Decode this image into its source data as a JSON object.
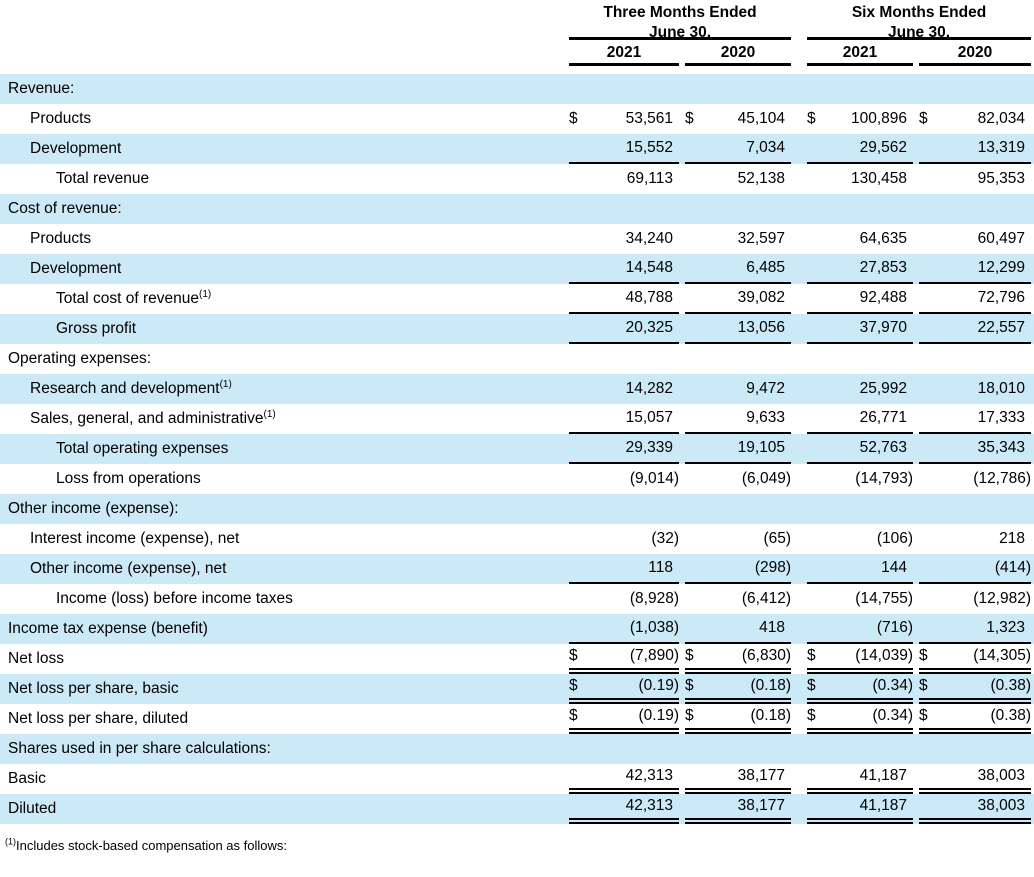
{
  "header": {
    "groups": [
      {
        "line1": "Three Months Ended",
        "line2": "June 30,"
      },
      {
        "line1": "Six Months Ended",
        "line2": "June 30,"
      }
    ],
    "years": [
      "2021",
      "2020",
      "2021",
      "2020"
    ]
  },
  "rows": [
    {
      "label": "Revenue:",
      "indent": 0,
      "values": null,
      "dollar": false,
      "underline": "none"
    },
    {
      "label": "Products",
      "indent": 1,
      "values": [
        "53,561",
        "45,104",
        "100,896",
        "82,034"
      ],
      "dollar": true,
      "underline": "none"
    },
    {
      "label": "Development",
      "indent": 1,
      "values": [
        "15,552",
        "7,034",
        "29,562",
        "13,319"
      ],
      "dollar": false,
      "underline": "single"
    },
    {
      "label": "Total revenue",
      "indent": 2,
      "values": [
        "69,113",
        "52,138",
        "130,458",
        "95,353"
      ],
      "dollar": false,
      "underline": "none"
    },
    {
      "label": "Cost of revenue:",
      "indent": 0,
      "values": null,
      "dollar": false,
      "underline": "none"
    },
    {
      "label": "Products",
      "indent": 1,
      "values": [
        "34,240",
        "32,597",
        "64,635",
        "60,497"
      ],
      "dollar": false,
      "underline": "none"
    },
    {
      "label": "Development",
      "indent": 1,
      "values": [
        "14,548",
        "6,485",
        "27,853",
        "12,299"
      ],
      "dollar": false,
      "underline": "single"
    },
    {
      "label": "Total cost of revenue",
      "sup": "(1)",
      "indent": 2,
      "values": [
        "48,788",
        "39,082",
        "92,488",
        "72,796"
      ],
      "dollar": false,
      "underline": "single"
    },
    {
      "label": "Gross profit",
      "indent": 2,
      "values": [
        "20,325",
        "13,056",
        "37,970",
        "22,557"
      ],
      "dollar": false,
      "underline": "single"
    },
    {
      "label": "Operating expenses:",
      "indent": 0,
      "values": null,
      "dollar": false,
      "underline": "none"
    },
    {
      "label": "Research and development",
      "sup": "(1)",
      "indent": 1,
      "values": [
        "14,282",
        "9,472",
        "25,992",
        "18,010"
      ],
      "dollar": false,
      "underline": "none"
    },
    {
      "label": "Sales, general, and administrative",
      "sup": "(1)",
      "indent": 1,
      "values": [
        "15,057",
        "9,633",
        "26,771",
        "17,333"
      ],
      "dollar": false,
      "underline": "single"
    },
    {
      "label": "Total operating expenses",
      "indent": 2,
      "values": [
        "29,339",
        "19,105",
        "52,763",
        "35,343"
      ],
      "dollar": false,
      "underline": "single"
    },
    {
      "label": "Loss from operations",
      "indent": 2,
      "values": [
        "(9,014)",
        "(6,049)",
        "(14,793)",
        "(12,786)"
      ],
      "dollar": false,
      "underline": "none"
    },
    {
      "label": "Other income (expense):",
      "indent": 0,
      "values": null,
      "dollar": false,
      "underline": "none"
    },
    {
      "label": "Interest income (expense), net",
      "indent": 1,
      "values": [
        "(32)",
        "(65)",
        "(106)",
        "218"
      ],
      "dollar": false,
      "underline": "none"
    },
    {
      "label": "Other income (expense), net",
      "indent": 1,
      "values": [
        "118",
        "(298)",
        "144",
        "(414)"
      ],
      "dollar": false,
      "underline": "single"
    },
    {
      "label": "Income (loss) before income taxes",
      "indent": 2,
      "values": [
        "(8,928)",
        "(6,412)",
        "(14,755)",
        "(12,982)"
      ],
      "dollar": false,
      "underline": "none"
    },
    {
      "label": "Income tax expense (benefit)",
      "indent": 0,
      "values": [
        "(1,038)",
        "418",
        "(716)",
        "1,323"
      ],
      "dollar": false,
      "underline": "single"
    },
    {
      "label": "Net loss",
      "indent": 0,
      "values": [
        "(7,890)",
        "(6,830)",
        "(14,039)",
        "(14,305)"
      ],
      "dollar": true,
      "underline": "double"
    },
    {
      "label": "Net loss per share, basic",
      "indent": 0,
      "values": [
        "(0.19)",
        "(0.18)",
        "(0.34)",
        "(0.38)"
      ],
      "dollar": true,
      "underline": "double"
    },
    {
      "label": "Net loss per share, diluted",
      "indent": 0,
      "values": [
        "(0.19)",
        "(0.18)",
        "(0.34)",
        "(0.38)"
      ],
      "dollar": true,
      "underline": "double"
    },
    {
      "label": "Shares used in per share calculations:",
      "indent": 0,
      "values": null,
      "dollar": false,
      "underline": "none"
    },
    {
      "label": "Basic",
      "indent": 0,
      "values": [
        "42,313",
        "38,177",
        "41,187",
        "38,003"
      ],
      "dollar": false,
      "underline": "double"
    },
    {
      "label": "Diluted",
      "indent": 0,
      "values": [
        "42,313",
        "38,177",
        "41,187",
        "38,003"
      ],
      "dollar": false,
      "underline": "double"
    }
  ],
  "footnote": {
    "sup": "(1)",
    "text": "Includes stock-based compensation as follows:"
  },
  "currency_symbol": "$",
  "colors": {
    "row_stripe": "#cce9f8",
    "text": "#000000",
    "rule": "#000000"
  }
}
